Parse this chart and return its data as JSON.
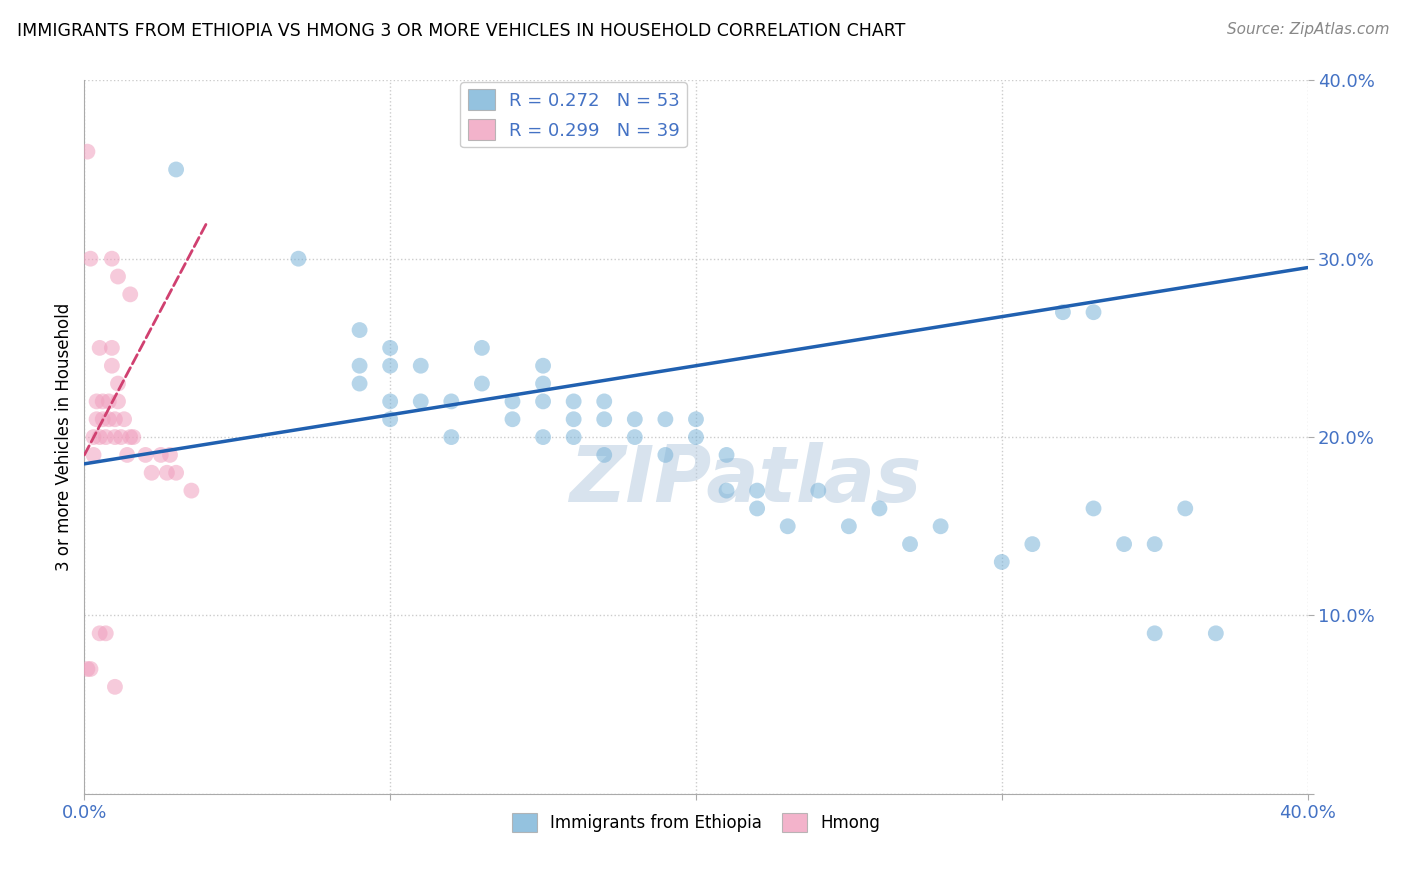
{
  "title": "IMMIGRANTS FROM ETHIOPIA VS HMONG 3 OR MORE VEHICLES IN HOUSEHOLD CORRELATION CHART",
  "source": "Source: ZipAtlas.com",
  "ylabel": "3 or more Vehicles in Household",
  "legend_entries": [
    {
      "label": "R = 0.272   N = 53",
      "color": "#aac4e8"
    },
    {
      "label": "R = 0.299   N = 39",
      "color": "#f0b8cc"
    }
  ],
  "legend_labels_bottom": [
    "Immigrants from Ethiopia",
    "Hmong"
  ],
  "xlim": [
    0.0,
    0.4
  ],
  "ylim": [
    0.0,
    0.4
  ],
  "xticks": [
    0.0,
    0.1,
    0.2,
    0.3,
    0.4
  ],
  "yticks": [
    0.0,
    0.1,
    0.2,
    0.3,
    0.4
  ],
  "xticklabels": [
    "0.0%",
    "",
    "",
    "",
    "40.0%"
  ],
  "yticklabels": [
    "",
    "10.0%",
    "20.0%",
    "30.0%",
    "40.0%"
  ],
  "background_color": "#ffffff",
  "watermark": "ZIPatlas",
  "ethiopia_color": "#7ab3d8",
  "hmong_color": "#f0a0be",
  "ethiopia_trendline_color": "#2060b0",
  "hmong_trendline_color": "#d04070",
  "ethiopia_scatter_x": [
    0.03,
    0.07,
    0.09,
    0.09,
    0.09,
    0.1,
    0.1,
    0.1,
    0.1,
    0.11,
    0.11,
    0.12,
    0.12,
    0.13,
    0.13,
    0.14,
    0.14,
    0.15,
    0.15,
    0.15,
    0.15,
    0.16,
    0.16,
    0.16,
    0.17,
    0.17,
    0.17,
    0.18,
    0.18,
    0.19,
    0.19,
    0.2,
    0.2,
    0.21,
    0.21,
    0.22,
    0.22,
    0.23,
    0.24,
    0.25,
    0.26,
    0.27,
    0.28,
    0.3,
    0.31,
    0.32,
    0.33,
    0.34,
    0.35,
    0.36,
    0.33,
    0.35,
    0.37
  ],
  "ethiopia_scatter_y": [
    0.35,
    0.3,
    0.24,
    0.26,
    0.23,
    0.24,
    0.25,
    0.22,
    0.21,
    0.22,
    0.24,
    0.22,
    0.2,
    0.23,
    0.25,
    0.22,
    0.21,
    0.24,
    0.22,
    0.2,
    0.23,
    0.21,
    0.22,
    0.2,
    0.21,
    0.22,
    0.19,
    0.2,
    0.21,
    0.19,
    0.21,
    0.2,
    0.21,
    0.19,
    0.17,
    0.17,
    0.16,
    0.15,
    0.17,
    0.15,
    0.16,
    0.14,
    0.15,
    0.13,
    0.14,
    0.27,
    0.16,
    0.14,
    0.09,
    0.16,
    0.27,
    0.14,
    0.09
  ],
  "hmong_scatter_x": [
    0.001,
    0.002,
    0.003,
    0.003,
    0.004,
    0.004,
    0.005,
    0.005,
    0.006,
    0.006,
    0.007,
    0.008,
    0.008,
    0.009,
    0.009,
    0.009,
    0.01,
    0.01,
    0.011,
    0.011,
    0.011,
    0.012,
    0.013,
    0.014,
    0.015,
    0.015,
    0.016,
    0.02,
    0.022,
    0.025,
    0.027,
    0.028,
    0.03,
    0.035,
    0.001,
    0.002,
    0.005,
    0.007,
    0.01
  ],
  "hmong_scatter_y": [
    0.07,
    0.07,
    0.19,
    0.2,
    0.21,
    0.22,
    0.2,
    0.25,
    0.21,
    0.22,
    0.2,
    0.21,
    0.22,
    0.24,
    0.25,
    0.3,
    0.2,
    0.21,
    0.22,
    0.23,
    0.29,
    0.2,
    0.21,
    0.19,
    0.2,
    0.28,
    0.2,
    0.19,
    0.18,
    0.19,
    0.18,
    0.19,
    0.18,
    0.17,
    0.36,
    0.3,
    0.09,
    0.09,
    0.06
  ],
  "ethiopia_trend_x0": 0.0,
  "ethiopia_trend_y0": 0.185,
  "ethiopia_trend_x1": 0.4,
  "ethiopia_trend_y1": 0.295,
  "hmong_trend_x0": 0.0,
  "hmong_trend_y0": 0.19,
  "hmong_trend_x1": 0.04,
  "hmong_trend_y1": 0.32
}
